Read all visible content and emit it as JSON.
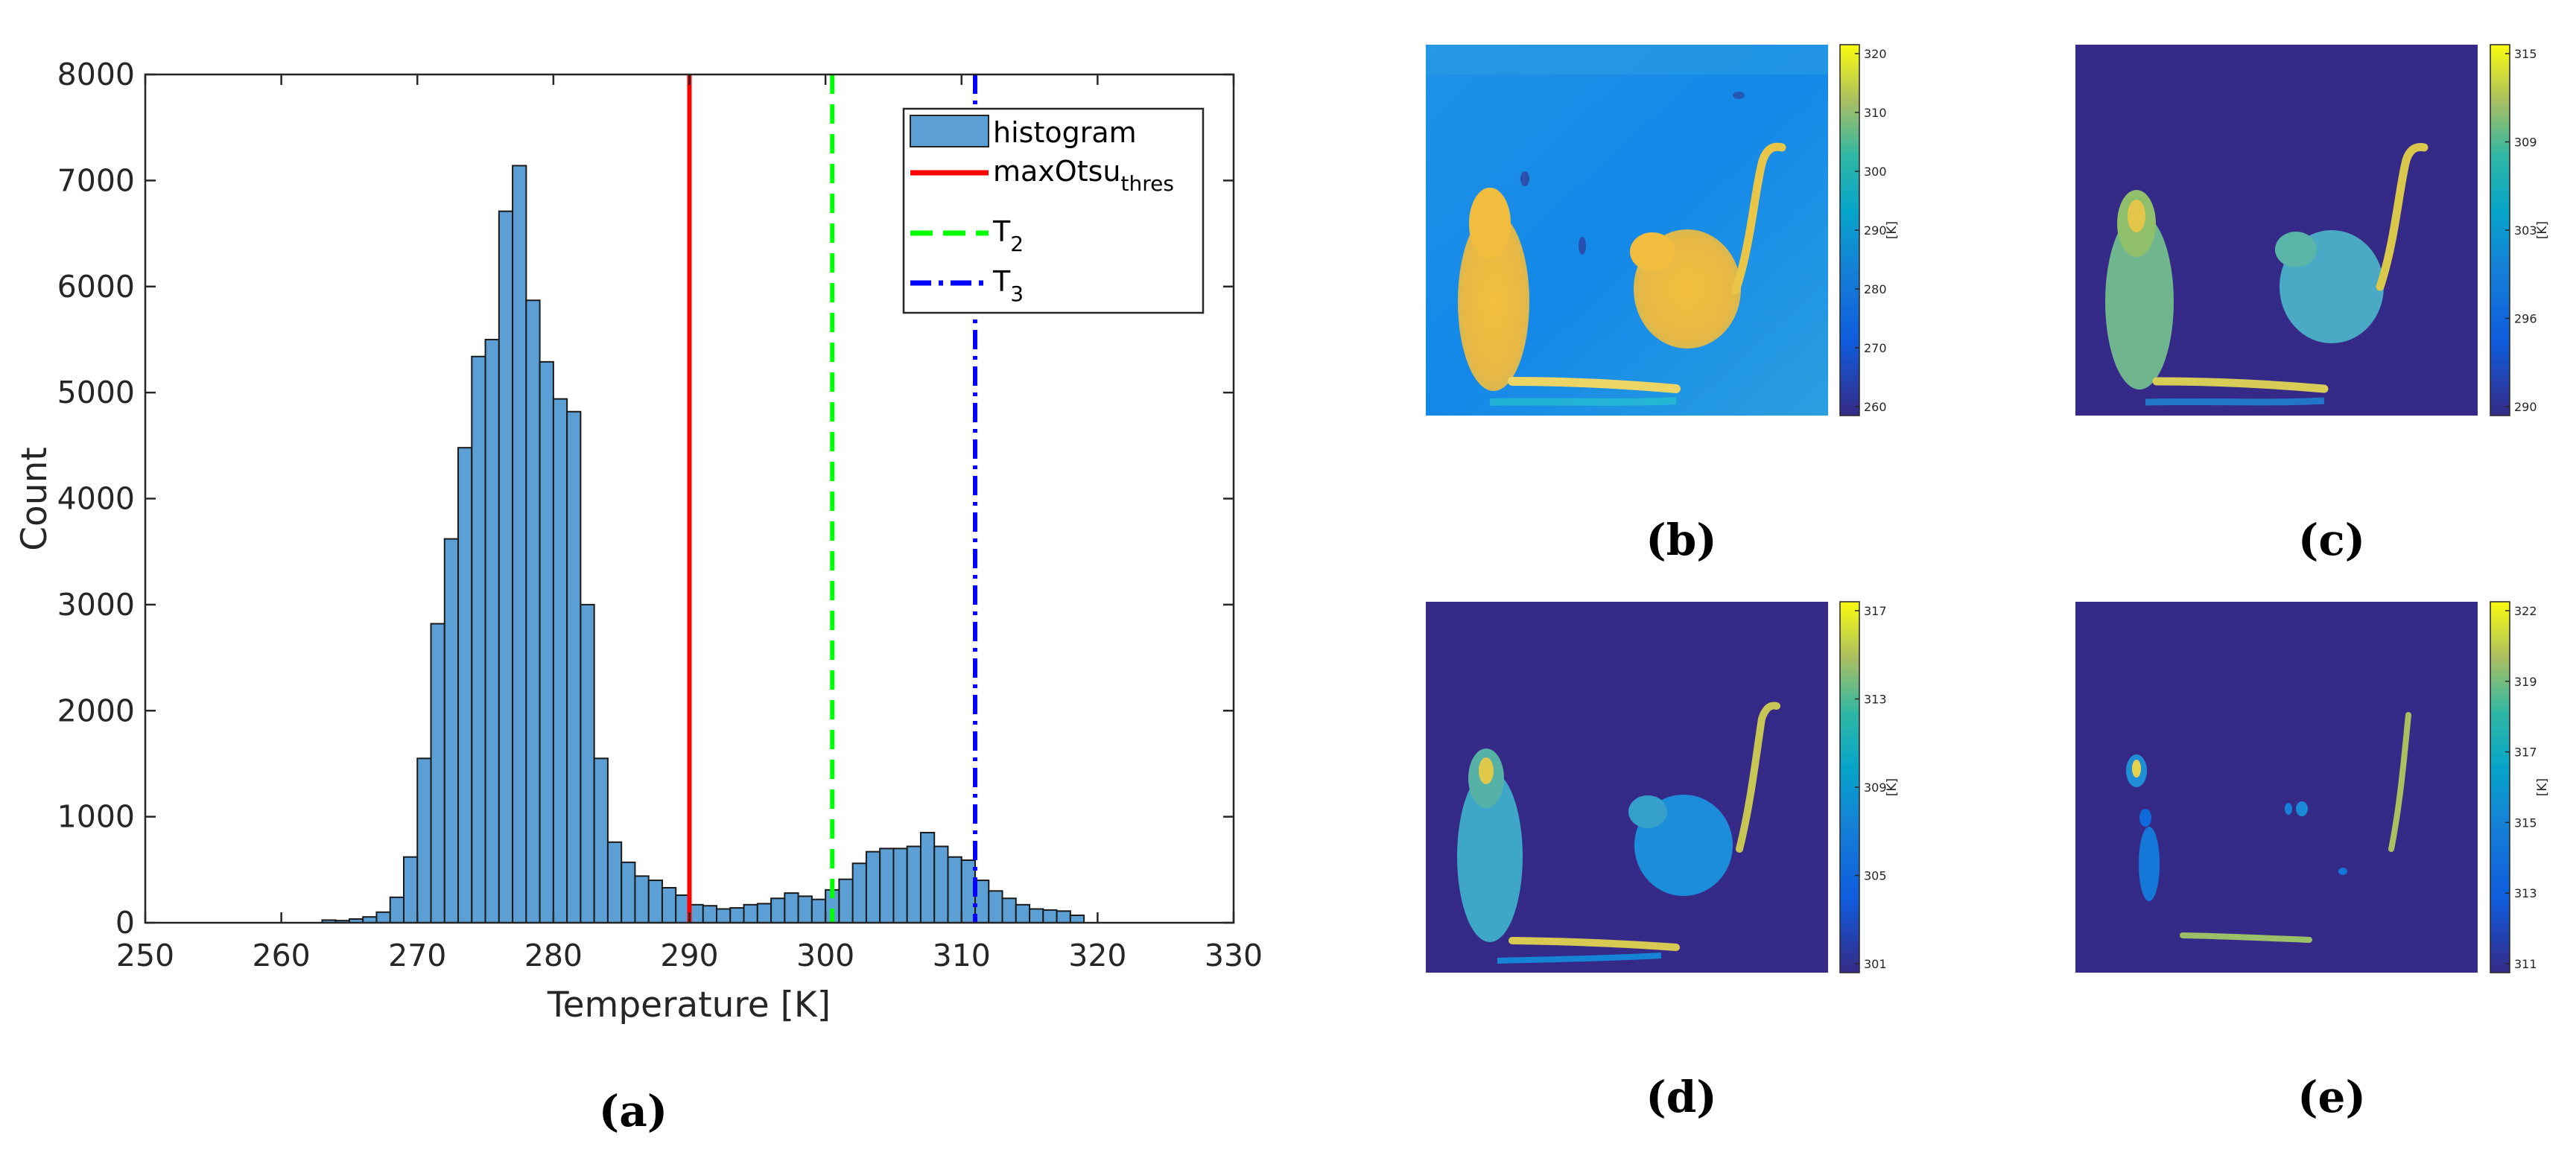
{
  "chart_data": [
    {
      "type": "bar",
      "panel_label": "(a)",
      "title": "",
      "xlabel": "Temperature [K]",
      "ylabel": "Count",
      "xlim": [
        250,
        330
      ],
      "ylim": [
        0,
        8000
      ],
      "xticks": [
        250,
        260,
        270,
        280,
        290,
        300,
        310,
        320,
        330
      ],
      "yticks": [
        0,
        1000,
        2000,
        3000,
        4000,
        5000,
        6000,
        7000,
        8000
      ],
      "bin_width": 1,
      "bin_starts": [
        250,
        251,
        252,
        253,
        254,
        255,
        256,
        257,
        258,
        259,
        260,
        261,
        262,
        263,
        264,
        265,
        266,
        267,
        268,
        269,
        270,
        271,
        272,
        273,
        274,
        275,
        276,
        277,
        278,
        279,
        280,
        281,
        282,
        283,
        284,
        285,
        286,
        287,
        288,
        289,
        290,
        291,
        292,
        293,
        294,
        295,
        296,
        297,
        298,
        299,
        300,
        301,
        302,
        303,
        304,
        305,
        306,
        307,
        308,
        309,
        310,
        311,
        312,
        313,
        314,
        315,
        316,
        317,
        318,
        319,
        320,
        321,
        322,
        323,
        324,
        325,
        326,
        327,
        328,
        329
      ],
      "counts": [
        0,
        0,
        0,
        0,
        0,
        0,
        0,
        0,
        0,
        0,
        0,
        0,
        0,
        25,
        20,
        35,
        55,
        100,
        240,
        620,
        1550,
        2820,
        3620,
        4480,
        5340,
        5500,
        6710,
        7140,
        5870,
        5290,
        4940,
        4820,
        3000,
        1550,
        760,
        570,
        440,
        400,
        330,
        260,
        170,
        160,
        130,
        140,
        170,
        180,
        230,
        280,
        250,
        220,
        310,
        410,
        560,
        670,
        700,
        700,
        720,
        850,
        720,
        620,
        590,
        400,
        300,
        230,
        170,
        130,
        120,
        110,
        70,
        0,
        0,
        0,
        0,
        0,
        0,
        0,
        0,
        0,
        0,
        0
      ],
      "bar_color": "#5b9fd4",
      "thresholds": [
        {
          "name": "maxOtsu",
          "subscript": "thres",
          "x": 290,
          "color": "#ff0000",
          "style": "solid"
        },
        {
          "name": "T",
          "subscript": "2",
          "x": 300.5,
          "color": "#00ff00",
          "style": "dashed"
        },
        {
          "name": "T",
          "subscript": "3",
          "x": 311,
          "color": "#0000ff",
          "style": "dashdot"
        }
      ],
      "legend": {
        "position": "top-right",
        "entries": [
          {
            "label": "histogram",
            "sub": ""
          },
          {
            "label": "maxOtsu",
            "sub": "thres"
          },
          {
            "label": "T",
            "sub": "2"
          },
          {
            "label": "T",
            "sub": "3"
          }
        ]
      }
    }
  ],
  "thermal_panels": [
    {
      "label": "(b)",
      "colorbar_ticks": [
        "320",
        "310",
        "300",
        "290",
        "280",
        "270",
        "260"
      ],
      "colorbar_unit": "[K]"
    },
    {
      "label": "(c)",
      "colorbar_ticks": [
        "315",
        "309",
        "303",
        "296",
        "290"
      ],
      "colorbar_unit": "[K]"
    },
    {
      "label": "(d)",
      "colorbar_ticks": [
        "317",
        "313",
        "309",
        "305",
        "301"
      ],
      "colorbar_unit": "[K]"
    },
    {
      "label": "(e)",
      "colorbar_ticks": [
        "322",
        "319",
        "317",
        "315",
        "313",
        "311"
      ],
      "colorbar_unit": "[K]"
    }
  ],
  "colors": {
    "parula_dark": "#352a87",
    "parula_yellow": "#f9fb0e",
    "background_blue": "#1a8de8"
  }
}
